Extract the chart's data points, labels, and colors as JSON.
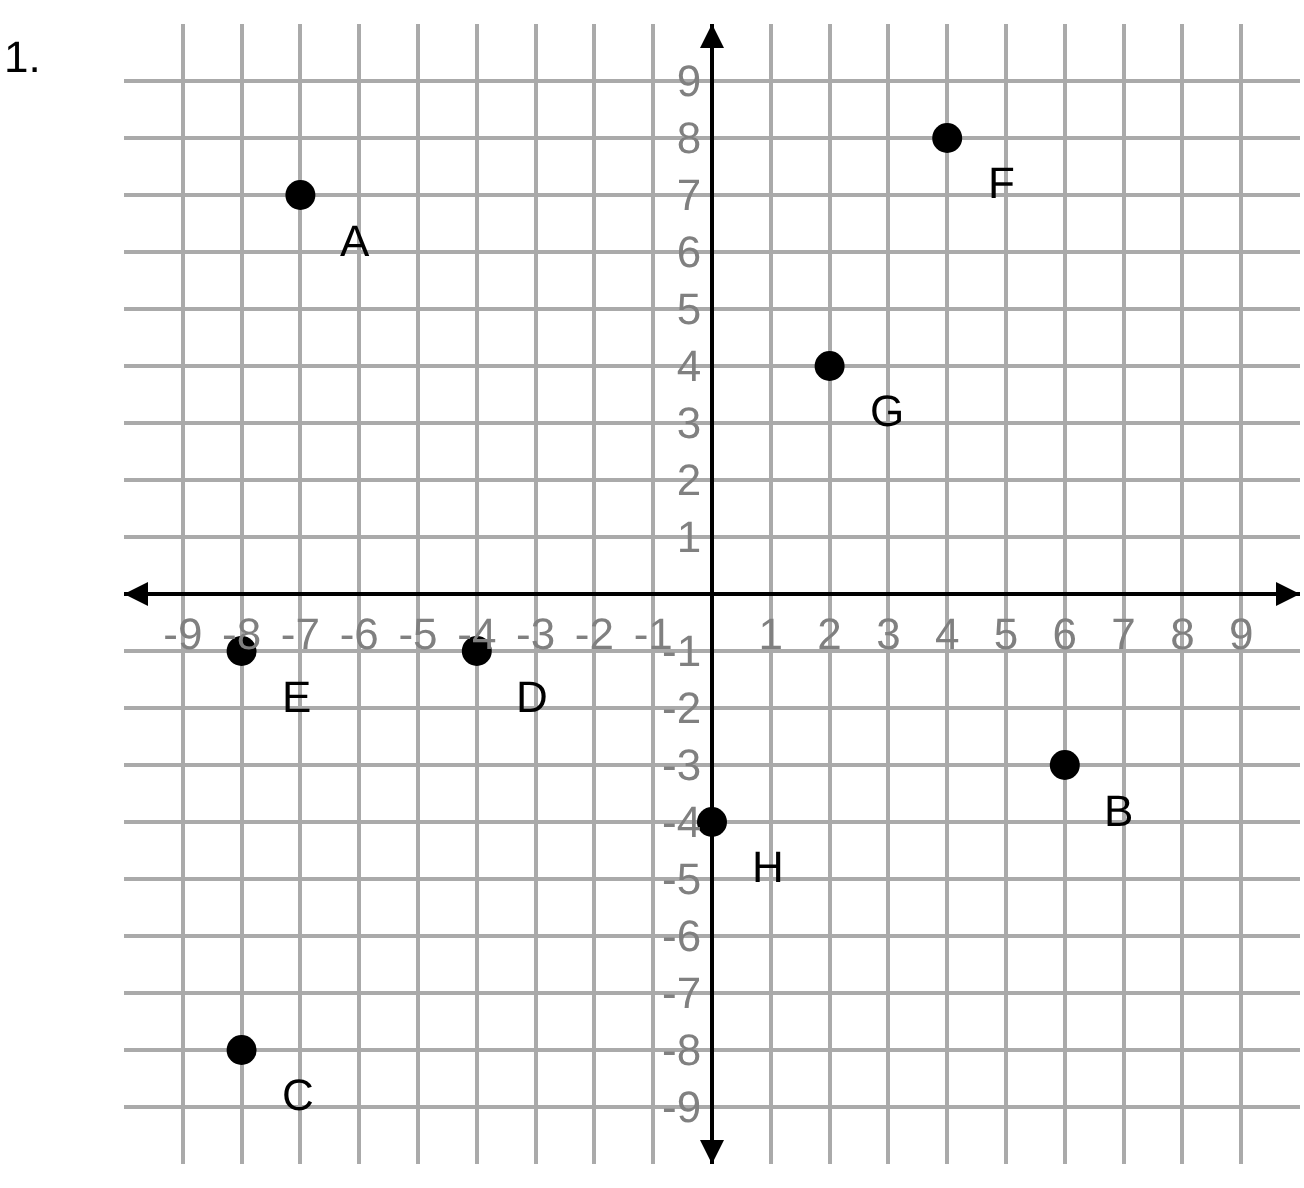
{
  "chart_data": {
    "type": "scatter",
    "title": "1.",
    "x": [
      -7,
      6,
      -8,
      -4,
      -8,
      4,
      2,
      0
    ],
    "values": [
      7,
      -3,
      -8,
      -1,
      -1,
      8,
      4,
      -4
    ],
    "color": "#000000",
    "marker": "circle",
    "annotations": [
      {
        "text": "A",
        "x": -7,
        "y": 7
      },
      {
        "text": "B",
        "x": 6,
        "y": -3
      },
      {
        "text": "C",
        "x": -8,
        "y": -8
      },
      {
        "text": "D",
        "x": -4,
        "y": -1
      },
      {
        "text": "E",
        "x": -8,
        "y": -1
      },
      {
        "text": "F",
        "x": 4,
        "y": 8
      },
      {
        "text": "G",
        "x": 2,
        "y": 4
      },
      {
        "text": "H",
        "x": 0,
        "y": -4
      }
    ],
    "xlim": [
      -10,
      10
    ],
    "ylim": [
      -10,
      10
    ],
    "xticks": [
      -9,
      -8,
      -7,
      -6,
      -5,
      -4,
      -3,
      -2,
      -1,
      1,
      2,
      3,
      4,
      5,
      6,
      7,
      8,
      9
    ],
    "yticks": [
      -9,
      -8,
      -7,
      -6,
      -5,
      -4,
      -3,
      -2,
      -1,
      1,
      2,
      3,
      4,
      5,
      6,
      7,
      8,
      9
    ],
    "grid": true
  }
}
